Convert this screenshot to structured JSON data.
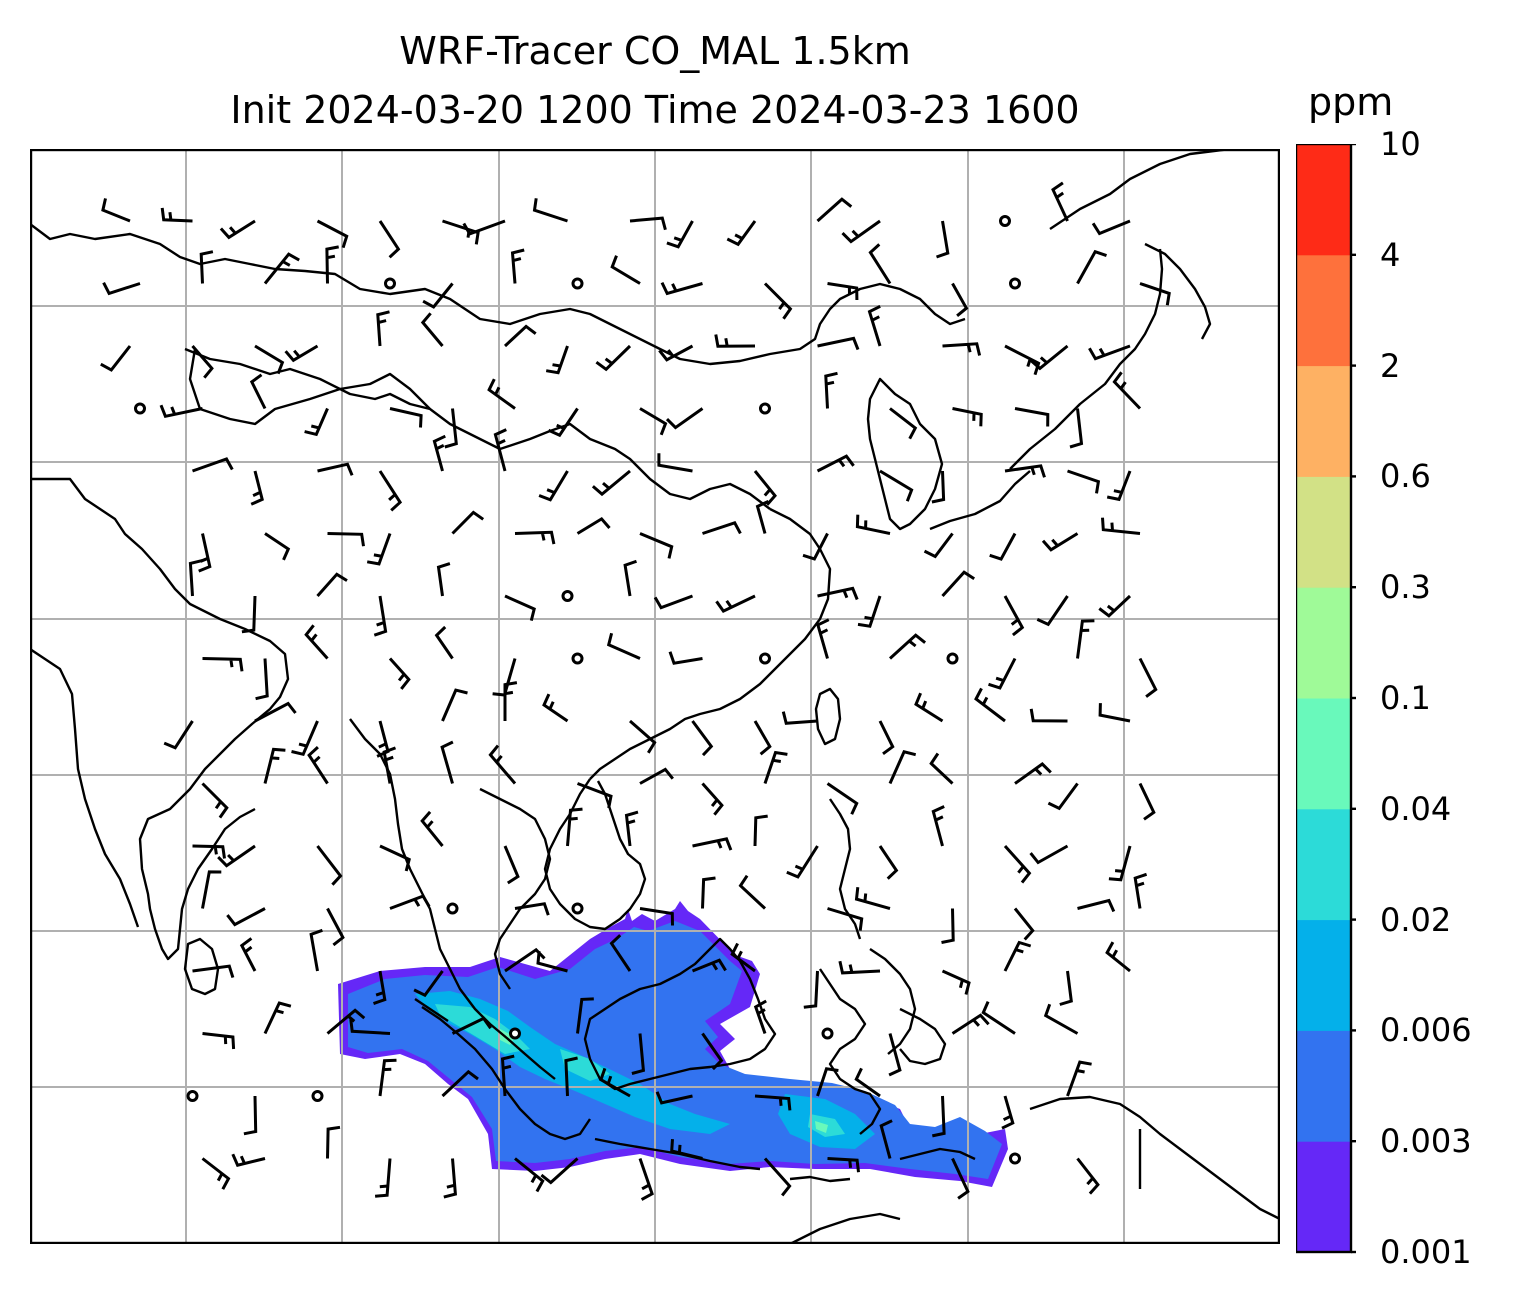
{
  "title": {
    "line1": "WRF-Tracer CO_MAL 1.5km",
    "line2": "Init 2024-03-20 1200 Time 2024-03-23 1600"
  },
  "colorbar": {
    "unit": "ppm",
    "levels": [
      "0.001",
      "0.003",
      "0.006",
      "0.02",
      "0.04",
      "0.1",
      "0.3",
      "0.6",
      "2",
      "4",
      "10"
    ],
    "colors": [
      "#6528f7",
      "#3273f0",
      "#04b0ea",
      "#2cdbd8",
      "#69f9bb",
      "#9ffa98",
      "#d2e186",
      "#feb163",
      "#fe713c",
      "#fe2b17"
    ]
  },
  "map": {
    "gridlines": true,
    "wind_barbs": true,
    "coastlines": true,
    "plume_colors": {
      "outer": "#6528f7",
      "main": "#3273f0",
      "mid": "#04b0ea",
      "inner": "#2cdbd8",
      "core": "#69f9bb"
    }
  }
}
